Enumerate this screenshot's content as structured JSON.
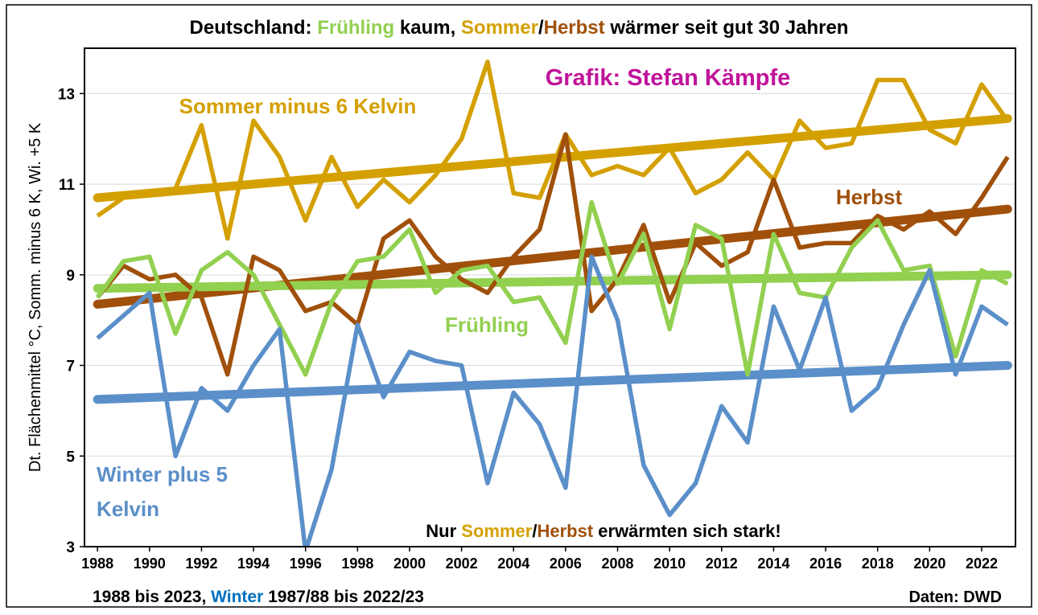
{
  "chart_data": {
    "type": "line",
    "title": [
      {
        "text": "Deutschland: ",
        "color": "#000000"
      },
      {
        "text": "Frühling",
        "color": "#92d050"
      },
      {
        "text": " kaum, ",
        "color": "#000000"
      },
      {
        "text": "Sommer",
        "color": "#d4a000"
      },
      {
        "text": "/",
        "color": "#000000"
      },
      {
        "text": "Herbst",
        "color": "#a0500a"
      },
      {
        "text": " wärmer seit gut 30 Jahren",
        "color": "#000000"
      }
    ],
    "credit": {
      "text": "Grafik: Stefan Kämpfe",
      "color": "#c0139a"
    },
    "note": [
      {
        "text": "Nur ",
        "color": "#000000"
      },
      {
        "text": "Sommer",
        "color": "#d4a000"
      },
      {
        "text": "/",
        "color": "#000000"
      },
      {
        "text": "Herbst",
        "color": "#a0500a"
      },
      {
        "text": " erwärmten sich stark!",
        "color": "#000000"
      }
    ],
    "footer_left": [
      {
        "text": "1988 bis 2023, ",
        "color": "#000000"
      },
      {
        "text": "Winter",
        "color": "#0070c0"
      },
      {
        "text": " 1987/88 bis 2022/23",
        "color": "#000000"
      }
    ],
    "footer_right": "Daten: DWD",
    "y_label": "Dt. Flächenmittel °C, Somm. minus 6 K, Wi. +5 K",
    "x": [
      1988,
      1989,
      1990,
      1991,
      1992,
      1993,
      1994,
      1995,
      1996,
      1997,
      1998,
      1999,
      2000,
      2001,
      2002,
      2003,
      2004,
      2005,
      2006,
      2007,
      2008,
      2009,
      2010,
      2011,
      2012,
      2013,
      2014,
      2015,
      2016,
      2017,
      2018,
      2019,
      2020,
      2021,
      2022,
      2023
    ],
    "series": [
      {
        "name": "Sommer minus 6 Kelvin",
        "color": "#d4a000",
        "label_color": "#d4a000",
        "values": [
          10.3,
          10.7,
          10.8,
          10.9,
          12.3,
          9.8,
          12.4,
          11.6,
          10.2,
          11.6,
          10.5,
          11.1,
          10.6,
          11.2,
          12.0,
          13.7,
          10.8,
          10.7,
          12.1,
          11.2,
          11.4,
          11.2,
          11.8,
          10.8,
          11.1,
          11.7,
          11.1,
          12.4,
          11.8,
          11.9,
          13.3,
          13.3,
          12.2,
          11.9,
          13.2,
          12.4
        ],
        "trend": [
          10.7,
          12.45
        ]
      },
      {
        "name": "Herbst",
        "color": "#a0500a",
        "label_color": "#a0500a",
        "values": [
          8.5,
          9.2,
          8.9,
          9.0,
          8.5,
          6.8,
          9.4,
          9.1,
          8.2,
          8.4,
          7.9,
          9.8,
          10.2,
          9.4,
          8.9,
          8.6,
          9.4,
          10.0,
          12.1,
          8.2,
          8.9,
          10.1,
          8.4,
          9.7,
          9.2,
          9.5,
          11.1,
          9.6,
          9.7,
          9.7,
          10.3,
          10.0,
          10.4,
          9.9,
          10.7,
          11.6
        ],
        "trend": [
          8.35,
          10.45
        ]
      },
      {
        "name": "Frühling",
        "color": "#92d050",
        "label_color": "#92d050",
        "values": [
          8.5,
          9.3,
          9.4,
          7.7,
          9.1,
          9.5,
          9.0,
          7.9,
          6.8,
          8.4,
          9.3,
          9.4,
          10.0,
          8.6,
          9.1,
          9.2,
          8.4,
          8.5,
          7.5,
          10.6,
          8.8,
          9.9,
          7.8,
          10.1,
          9.8,
          6.8,
          9.9,
          8.6,
          8.5,
          9.6,
          10.2,
          9.1,
          9.2,
          7.2,
          9.1,
          8.8
        ],
        "trend": [
          8.7,
          9.0
        ]
      },
      {
        "name_lines": [
          "Winter plus 5",
          "Kelvin"
        ],
        "color": "#5b8fc9",
        "label_color": "#5b8fc9",
        "values": [
          7.6,
          8.1,
          8.6,
          5.0,
          6.5,
          6.0,
          7.0,
          7.8,
          2.9,
          4.7,
          7.9,
          6.3,
          7.3,
          7.1,
          7.0,
          4.4,
          6.4,
          5.7,
          4.3,
          9.4,
          8.0,
          4.8,
          3.7,
          4.4,
          6.1,
          5.3,
          8.3,
          6.9,
          8.5,
          6.0,
          6.5,
          7.9,
          9.1,
          6.8,
          8.3,
          7.9
        ],
        "trend": [
          6.25,
          7.0
        ]
      }
    ],
    "xlim": [
      1987.5,
      2023.3
    ],
    "xticks": [
      1988,
      1990,
      1992,
      1994,
      1996,
      1998,
      2000,
      2002,
      2004,
      2006,
      2008,
      2010,
      2012,
      2014,
      2016,
      2018,
      2020,
      2022
    ],
    "ylim": [
      3,
      14
    ],
    "yticks": [
      3,
      5,
      7,
      9,
      11,
      13
    ],
    "grid": true
  }
}
